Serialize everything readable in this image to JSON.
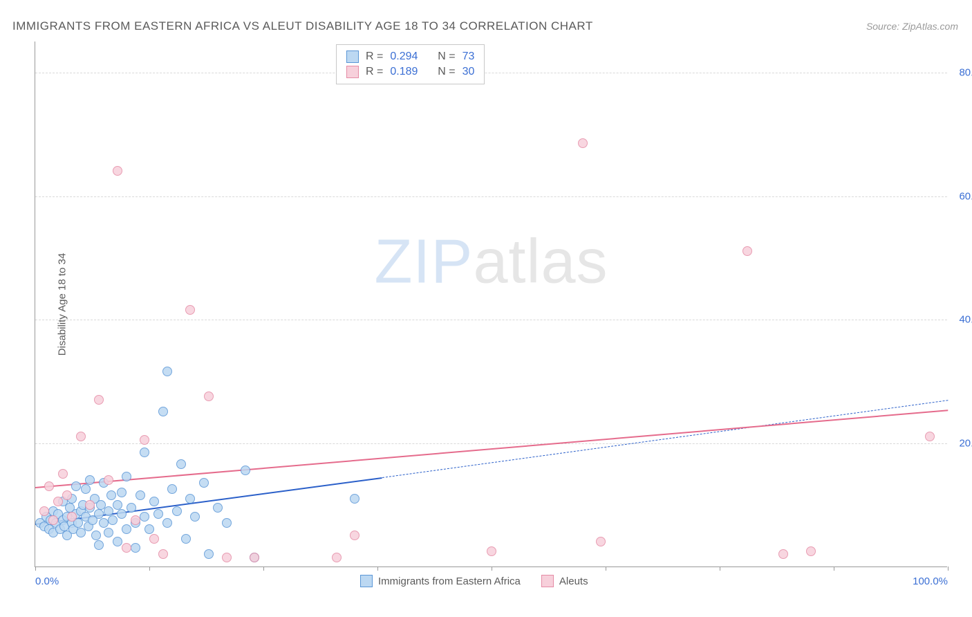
{
  "title": "IMMIGRANTS FROM EASTERN AFRICA VS ALEUT DISABILITY AGE 18 TO 34 CORRELATION CHART",
  "source_label": "Source: ",
  "source_name": "ZipAtlas.com",
  "y_axis_label": "Disability Age 18 to 34",
  "watermark": {
    "zip": "ZIP",
    "atlas": "atlas"
  },
  "chart": {
    "type": "scatter",
    "xlim": [
      0,
      100
    ],
    "ylim": [
      0,
      85
    ],
    "x_ticks": [
      0,
      12.5,
      25,
      37.5,
      50,
      62.5,
      75,
      87.5,
      100
    ],
    "x_tick_labels": {
      "0": "0.0%",
      "100": "100.0%"
    },
    "y_gridlines": [
      20,
      40,
      60,
      80
    ],
    "y_tick_labels": {
      "20": "20.0%",
      "40": "40.0%",
      "60": "60.0%",
      "80": "80.0%"
    },
    "background_color": "#ffffff",
    "grid_color": "#d8d8d8",
    "axis_color": "#999999",
    "tick_label_color": "#3b6fd4",
    "marker_radius": 7,
    "marker_stroke_width": 1.2,
    "series": [
      {
        "name": "Immigrants from Eastern Africa",
        "fill": "#bcd8f2",
        "stroke": "#5a96d6",
        "r_value": "0.294",
        "n_value": "73",
        "trend": {
          "color": "#2a5fc9",
          "width": 2.5,
          "solid_from": [
            0,
            7
          ],
          "solid_to": [
            38,
            14.5
          ],
          "dash_from": [
            38,
            14.5
          ],
          "dash_to": [
            100,
            27
          ]
        },
        "points": [
          [
            0.5,
            7
          ],
          [
            1,
            6.5
          ],
          [
            1.2,
            8
          ],
          [
            1.5,
            6
          ],
          [
            1.7,
            7.5
          ],
          [
            2,
            9
          ],
          [
            2,
            5.5
          ],
          [
            2.3,
            7
          ],
          [
            2.5,
            8.5
          ],
          [
            2.7,
            6
          ],
          [
            3,
            7.5
          ],
          [
            3,
            10.5
          ],
          [
            3.2,
            6.5
          ],
          [
            3.5,
            8
          ],
          [
            3.5,
            5
          ],
          [
            3.8,
            9.5
          ],
          [
            4,
            7
          ],
          [
            4,
            11
          ],
          [
            4.2,
            6
          ],
          [
            4.5,
            8.5
          ],
          [
            4.5,
            13
          ],
          [
            4.7,
            7
          ],
          [
            5,
            9
          ],
          [
            5,
            5.5
          ],
          [
            5.2,
            10
          ],
          [
            5.5,
            8
          ],
          [
            5.5,
            12.5
          ],
          [
            5.8,
            6.5
          ],
          [
            6,
            9.5
          ],
          [
            6,
            14
          ],
          [
            6.3,
            7.5
          ],
          [
            6.5,
            11
          ],
          [
            6.7,
            5
          ],
          [
            7,
            8.5
          ],
          [
            7,
            3.5
          ],
          [
            7.2,
            10
          ],
          [
            7.5,
            7
          ],
          [
            7.5,
            13.5
          ],
          [
            8,
            9
          ],
          [
            8,
            5.5
          ],
          [
            8.3,
            11.5
          ],
          [
            8.5,
            7.5
          ],
          [
            9,
            10
          ],
          [
            9,
            4
          ],
          [
            9.5,
            8.5
          ],
          [
            9.5,
            12
          ],
          [
            10,
            6
          ],
          [
            10,
            14.5
          ],
          [
            10.5,
            9.5
          ],
          [
            11,
            7
          ],
          [
            11,
            3
          ],
          [
            11.5,
            11.5
          ],
          [
            12,
            8
          ],
          [
            12,
            18.5
          ],
          [
            12.5,
            6
          ],
          [
            13,
            10.5
          ],
          [
            13.5,
            8.5
          ],
          [
            14,
            25
          ],
          [
            14.5,
            7
          ],
          [
            15,
            12.5
          ],
          [
            15.5,
            9
          ],
          [
            16,
            16.5
          ],
          [
            16.5,
            4.5
          ],
          [
            17,
            11
          ],
          [
            17.5,
            8
          ],
          [
            18.5,
            13.5
          ],
          [
            19,
            2
          ],
          [
            14.5,
            31.5
          ],
          [
            20,
            9.5
          ],
          [
            21,
            7
          ],
          [
            23,
            15.5
          ],
          [
            24,
            1.5
          ],
          [
            35,
            11
          ]
        ]
      },
      {
        "name": "Aleuts",
        "fill": "#f7d0db",
        "stroke": "#e58ba5",
        "r_value": "0.189",
        "n_value": "30",
        "trend": {
          "color": "#e56b8c",
          "width": 2.5,
          "solid_from": [
            0,
            13
          ],
          "solid_to": [
            100,
            25.5
          ]
        },
        "points": [
          [
            1,
            9
          ],
          [
            1.5,
            13
          ],
          [
            2,
            7.5
          ],
          [
            2.5,
            10.5
          ],
          [
            3,
            15
          ],
          [
            3.5,
            11.5
          ],
          [
            4,
            8
          ],
          [
            5,
            21
          ],
          [
            6,
            10
          ],
          [
            7,
            27
          ],
          [
            8,
            14
          ],
          [
            9,
            64
          ],
          [
            10,
            3
          ],
          [
            11,
            7.5
          ],
          [
            12,
            20.5
          ],
          [
            13,
            4.5
          ],
          [
            14,
            2
          ],
          [
            17,
            41.5
          ],
          [
            19,
            27.5
          ],
          [
            21,
            1.5
          ],
          [
            24,
            1.5
          ],
          [
            33,
            1.5
          ],
          [
            35,
            5
          ],
          [
            50,
            2.5
          ],
          [
            60,
            68.5
          ],
          [
            62,
            4
          ],
          [
            78,
            51
          ],
          [
            82,
            2
          ],
          [
            85,
            2.5
          ],
          [
            98,
            21
          ]
        ]
      }
    ]
  },
  "stats_box": {
    "r_label": "R =",
    "n_label": "N ="
  },
  "legend": {
    "series1_label": "Immigrants from Eastern Africa",
    "series2_label": "Aleuts"
  }
}
